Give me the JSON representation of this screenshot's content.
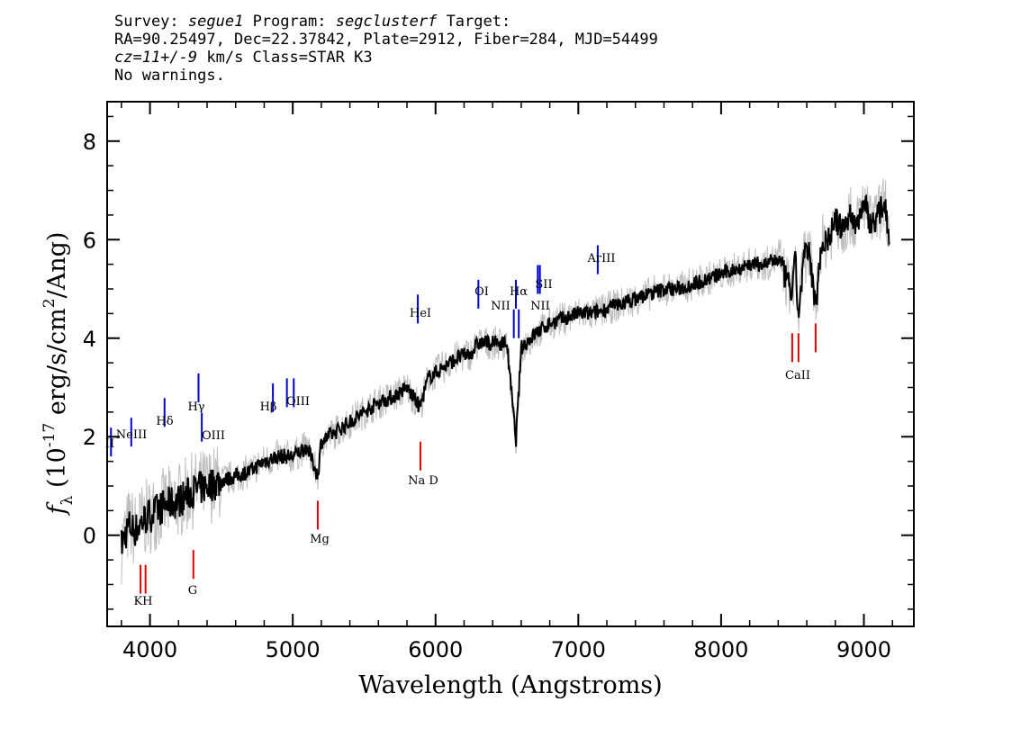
{
  "header": {
    "survey_label": "Survey:",
    "survey": "segue1",
    "program_label": "Program:",
    "program": "segclusterf",
    "target_label": "Target:",
    "line2": "RA=90.25497, Dec=22.37842, Plate=2912, Fiber=284, MJD=54499",
    "cz_label": "cz=11+/-9",
    "cz_rest": " km/s Class=STAR K3",
    "line4": "No warnings."
  },
  "chart_data": {
    "type": "line",
    "xlabel": "Wavelength (Angstroms)",
    "ylabel": "f_λ (10^-17 erg/s/cm^2/Ang)",
    "xlim": [
      3700,
      9350
    ],
    "ylim": [
      -1.85,
      8.8
    ],
    "x_ticks": [
      4000,
      5000,
      6000,
      7000,
      8000,
      9000
    ],
    "y_ticks": [
      0,
      2,
      4,
      6,
      8
    ],
    "colors": {
      "flux": "#000000",
      "noise": "#bebebe",
      "emission": "#0000cc",
      "absorption": "#dd0000"
    },
    "series": [
      {
        "role": "flux",
        "x": [
          3800,
          3850,
          3900,
          3950,
          4000,
          4100,
          4200,
          4300,
          4400,
          4500,
          4600,
          4700,
          4800,
          4900,
          5000,
          5100,
          5175,
          5200,
          5300,
          5400,
          5500,
          5600,
          5700,
          5800,
          5890,
          5950,
          6050,
          6150,
          6250,
          6300,
          6400,
          6500,
          6563,
          6600,
          6700,
          6800,
          6900,
          7000,
          7100,
          7200,
          7300,
          7400,
          7500,
          7600,
          7700,
          7800,
          7900,
          8000,
          8100,
          8200,
          8300,
          8400,
          8498,
          8520,
          8542,
          8580,
          8620,
          8662,
          8700,
          8750,
          8800,
          8850,
          8900,
          8950,
          9000,
          9050,
          9100,
          9150,
          9180
        ],
        "y": [
          -0.2,
          0.2,
          0.1,
          0.3,
          0.4,
          0.6,
          0.7,
          0.9,
          1.0,
          1.1,
          1.2,
          1.3,
          1.5,
          1.6,
          1.6,
          1.8,
          1.2,
          1.9,
          2.1,
          2.3,
          2.5,
          2.7,
          2.8,
          3.0,
          2.6,
          3.2,
          3.4,
          3.6,
          3.7,
          3.9,
          3.9,
          3.9,
          1.9,
          3.8,
          4.1,
          4.3,
          4.4,
          4.5,
          4.5,
          4.6,
          4.7,
          4.8,
          4.9,
          5.0,
          5.0,
          5.1,
          5.2,
          5.3,
          5.4,
          5.5,
          5.5,
          5.6,
          4.9,
          5.6,
          4.4,
          5.7,
          5.7,
          4.6,
          5.9,
          6.0,
          6.4,
          6.2,
          6.5,
          6.3,
          6.8,
          6.3,
          6.5,
          6.8,
          5.9
        ]
      }
    ],
    "emission_lines": [
      {
        "label": "OII",
        "x": 3727,
        "y": 1.6,
        "show_label": "II"
      },
      {
        "label": "NeIII",
        "x": 3869,
        "y": 1.8
      },
      {
        "label": "Hδ",
        "x": 4102,
        "y": 2.2
      },
      {
        "label": "Hγ",
        "x": 4340,
        "y": 2.7
      },
      {
        "label": "OIII",
        "x": 4363,
        "y": 1.9
      },
      {
        "label": "Hβ",
        "x": 4861,
        "y": 2.5
      },
      {
        "label": "OIII",
        "x": 4959,
        "y": 2.6
      },
      {
        "label": "OIII",
        "x": 5007,
        "y": 2.6
      },
      {
        "label": "HeI",
        "x": 5876,
        "y": 4.3
      },
      {
        "label": "OI",
        "x": 6300,
        "y": 4.6
      },
      {
        "label": "NII",
        "x": 6548,
        "y": 4.0
      },
      {
        "label": "Hα",
        "x": 6563,
        "y": 4.6
      },
      {
        "label": "NII",
        "x": 6583,
        "y": 4.0
      },
      {
        "label": "SII",
        "x": 6716,
        "y": 4.9
      },
      {
        "label": "SII",
        "x": 6731,
        "y": 4.9
      },
      {
        "label": "ArIII",
        "x": 7136,
        "y": 5.3
      }
    ],
    "absorption_lines": [
      {
        "label": "K",
        "x": 3934,
        "y": -0.6
      },
      {
        "label": "H",
        "x": 3969,
        "y": -0.6
      },
      {
        "label": "G",
        "x": 4304,
        "y": -0.3
      },
      {
        "label": "Mg",
        "x": 5175,
        "y": 0.7
      },
      {
        "label": "Na D",
        "x": 5894,
        "y": 1.9
      },
      {
        "label": "CaII",
        "x": 8498,
        "y": 4.1
      },
      {
        "label": "CaII",
        "x": 8542,
        "y": 4.1
      },
      {
        "label": "CaII",
        "x": 8662,
        "y": 4.3
      }
    ],
    "absorption_label_text": {
      "KH": "KH",
      "G": "G",
      "Mg": "Mg",
      "NaD": "Na D",
      "CaII": "CaII"
    },
    "emission_label_text": {
      "OII": "II",
      "NeIII": "NeIII",
      "Hd": "Hδ",
      "Hg": "Hγ",
      "OIII_a": "OIII",
      "Hb": "Hβ",
      "OIII_b": "OIII",
      "HeI": "HeI",
      "OI": "OI",
      "NII_a": "NII",
      "Ha": "Hα",
      "NII_b": "NII",
      "SII": "SII",
      "ArIII": "ArIII"
    }
  }
}
